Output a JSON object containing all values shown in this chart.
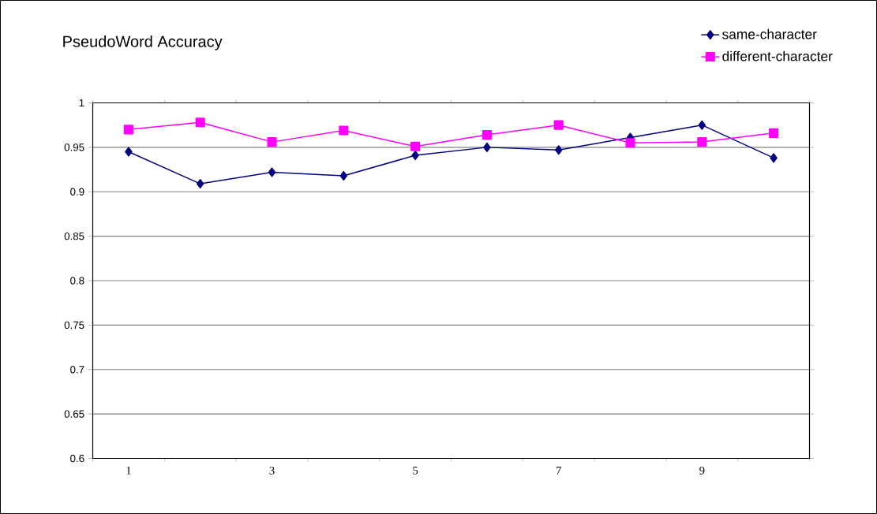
{
  "chart_data": {
    "type": "line",
    "title": "PseudoWord Accuracy",
    "categories": [
      "1",
      null,
      "3",
      null,
      "5",
      null,
      "7",
      null,
      "9",
      null
    ],
    "series": [
      {
        "name": "same-character",
        "color": "#000080",
        "marker": "diamond",
        "values": [
          0.945,
          0.909,
          0.922,
          0.918,
          0.941,
          0.95,
          0.947,
          0.961,
          0.975,
          0.938
        ]
      },
      {
        "name": "different-character",
        "color": "#ff00ff",
        "marker": "square",
        "values": [
          0.97,
          0.978,
          0.956,
          0.969,
          0.951,
          0.964,
          0.975,
          0.955,
          0.956,
          0.966
        ]
      }
    ],
    "ylim": [
      0.6,
      1
    ],
    "yticks": [
      0.6,
      0.65,
      0.7,
      0.75,
      0.8,
      0.85,
      0.9,
      0.95,
      1
    ],
    "grid": "y",
    "legend": "top right"
  }
}
